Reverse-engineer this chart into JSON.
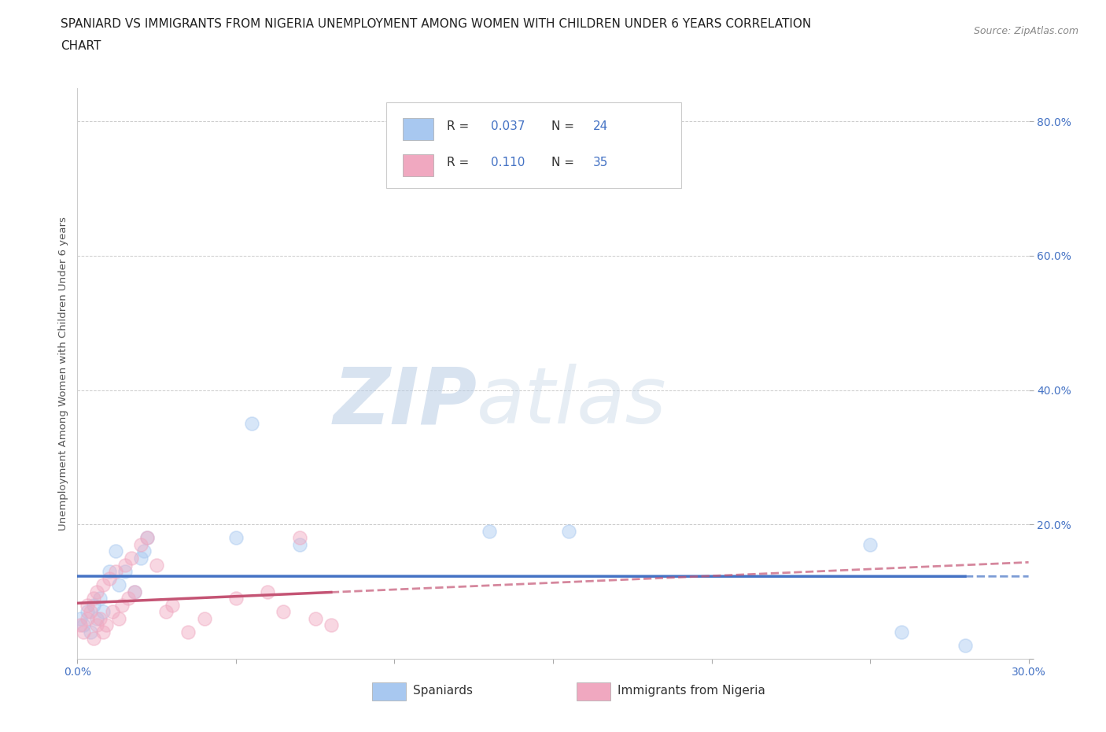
{
  "title_line1": "SPANIARD VS IMMIGRANTS FROM NIGERIA UNEMPLOYMENT AMONG WOMEN WITH CHILDREN UNDER 6 YEARS CORRELATION",
  "title_line2": "CHART",
  "source_text": "Source: ZipAtlas.com",
  "ylabel": "Unemployment Among Women with Children Under 6 years",
  "xlim": [
    0.0,
    0.3
  ],
  "ylim": [
    0.0,
    0.85
  ],
  "x_ticks": [
    0.0,
    0.05,
    0.1,
    0.15,
    0.2,
    0.25,
    0.3
  ],
  "y_ticks": [
    0.0,
    0.2,
    0.4,
    0.6,
    0.8
  ],
  "grid_color": "#cccccc",
  "background_color": "#ffffff",
  "spaniards_color": "#a8c8f0",
  "nigeria_color": "#f0a8c0",
  "spaniards_line_color": "#4472c4",
  "nigeria_line_color": "#c45474",
  "R_spaniards": 0.037,
  "N_spaniards": 24,
  "R_nigeria": 0.11,
  "N_nigeria": 35,
  "spaniards_x": [
    0.001,
    0.002,
    0.003,
    0.004,
    0.005,
    0.006,
    0.007,
    0.008,
    0.01,
    0.012,
    0.013,
    0.015,
    0.018,
    0.02,
    0.021,
    0.022,
    0.05,
    0.055,
    0.07,
    0.13,
    0.155,
    0.25,
    0.26,
    0.28
  ],
  "spaniards_y": [
    0.06,
    0.05,
    0.07,
    0.04,
    0.08,
    0.06,
    0.09,
    0.07,
    0.13,
    0.16,
    0.11,
    0.13,
    0.1,
    0.15,
    0.16,
    0.18,
    0.18,
    0.35,
    0.17,
    0.19,
    0.19,
    0.17,
    0.04,
    0.02
  ],
  "nigeria_x": [
    0.001,
    0.002,
    0.003,
    0.003,
    0.004,
    0.005,
    0.005,
    0.006,
    0.006,
    0.007,
    0.008,
    0.008,
    0.009,
    0.01,
    0.011,
    0.012,
    0.013,
    0.014,
    0.015,
    0.016,
    0.017,
    0.018,
    0.02,
    0.022,
    0.025,
    0.028,
    0.03,
    0.035,
    0.04,
    0.05,
    0.06,
    0.065,
    0.07,
    0.075,
    0.08
  ],
  "nigeria_y": [
    0.05,
    0.04,
    0.06,
    0.08,
    0.07,
    0.09,
    0.03,
    0.1,
    0.05,
    0.06,
    0.11,
    0.04,
    0.05,
    0.12,
    0.07,
    0.13,
    0.06,
    0.08,
    0.14,
    0.09,
    0.15,
    0.1,
    0.17,
    0.18,
    0.14,
    0.07,
    0.08,
    0.04,
    0.06,
    0.09,
    0.1,
    0.07,
    0.18,
    0.06,
    0.05
  ],
  "zipatlas_watermark_zip": "ZIP",
  "zipatlas_watermark_atlas": "atlas",
  "legend_label_spaniards": "Spaniards",
  "legend_label_nigeria": "Immigrants from Nigeria",
  "title_fontsize": 11,
  "axis_label_fontsize": 9.5,
  "tick_fontsize": 10,
  "scatter_size": 150,
  "scatter_alpha": 0.45,
  "scatter_linewidth": 1.2
}
